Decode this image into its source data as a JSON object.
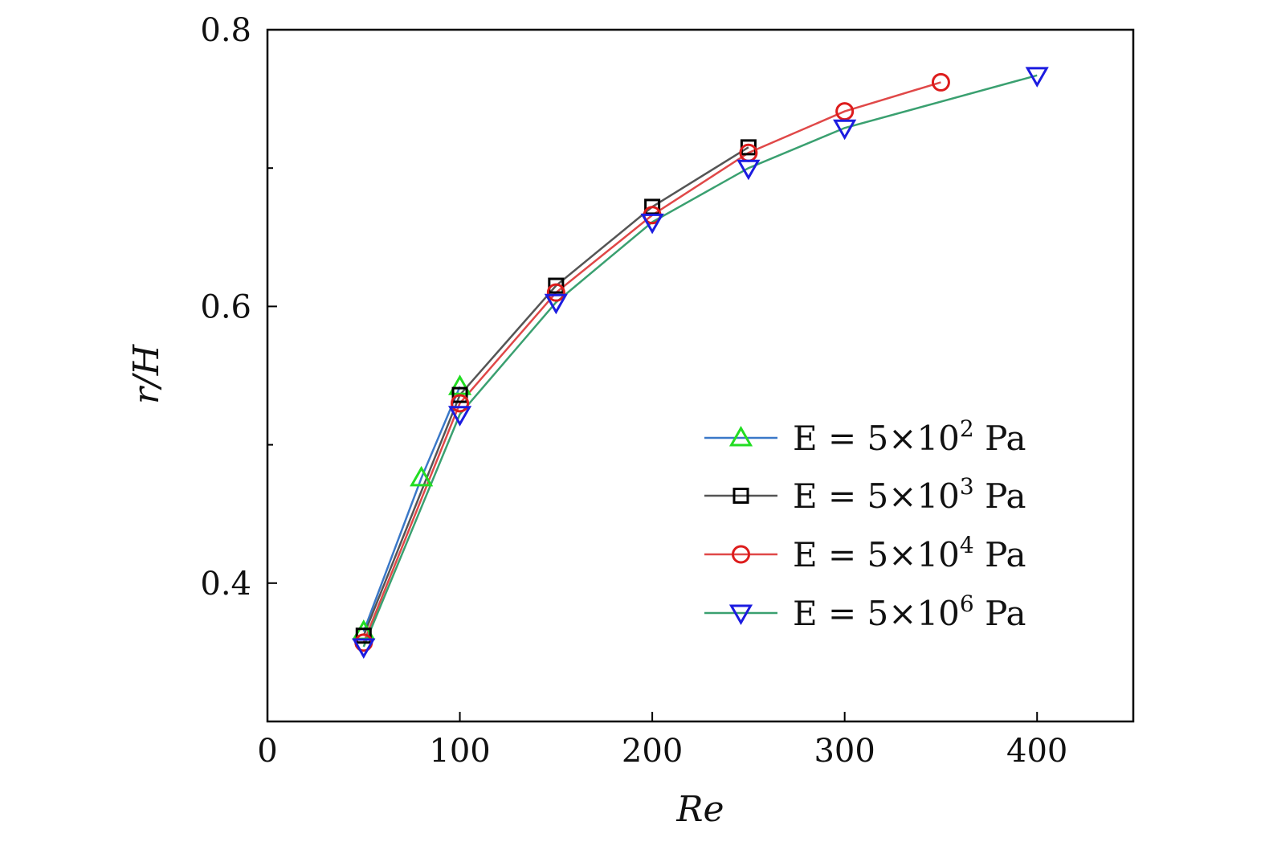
{
  "chart_data": {
    "type": "line",
    "xlabel": "Re",
    "ylabel": "r/H",
    "xlim": [
      0,
      450
    ],
    "ylim": [
      0.3,
      0.8
    ],
    "x_ticks": [
      0,
      100,
      200,
      300,
      400
    ],
    "x_tick_labels": [
      "0",
      "100",
      "200",
      "300",
      "400"
    ],
    "y_ticks": [
      0.4,
      0.6,
      0.8
    ],
    "y_tick_labels": [
      "0.4",
      "0.6",
      "0.8"
    ],
    "y_minor_ticks": [
      0.5,
      0.7
    ],
    "grid": false,
    "legend_position": "right",
    "series": [
      {
        "name": "E = 5×10² Pa",
        "base": "E = 5×10",
        "exponent": "2",
        "unit": "Pa",
        "line_color": "#3a78c8",
        "marker_color": "#22dd22",
        "marker": "triangle-up",
        "x": [
          50,
          80,
          100
        ],
        "y": [
          0.365,
          0.476,
          0.542
        ]
      },
      {
        "name": "E = 5×10³ Pa",
        "base": "E = 5×10",
        "exponent": "3",
        "unit": "Pa",
        "line_color": "#555555",
        "marker_color": "#000000",
        "marker": "square",
        "x": [
          50,
          100,
          150,
          200,
          250
        ],
        "y": [
          0.362,
          0.536,
          0.615,
          0.672,
          0.715
        ]
      },
      {
        "name": "E = 5×10⁴ Pa",
        "base": "E = 5×10",
        "exponent": "4",
        "unit": "Pa",
        "line_color": "#e04848",
        "marker_color": "#dd1c1c",
        "marker": "circle",
        "x": [
          50,
          100,
          150,
          200,
          250,
          300,
          350
        ],
        "y": [
          0.357,
          0.53,
          0.61,
          0.666,
          0.711,
          0.741,
          0.762
        ]
      },
      {
        "name": "E = 5×10⁶ Pa",
        "base": "E = 5×10",
        "exponent": "6",
        "unit": "Pa",
        "line_color": "#3aa070",
        "marker_color": "#1c1ce0",
        "marker": "triangle-down",
        "x": [
          50,
          100,
          150,
          200,
          250,
          300,
          400
        ],
        "y": [
          0.354,
          0.522,
          0.603,
          0.661,
          0.7,
          0.729,
          0.767
        ]
      }
    ]
  }
}
